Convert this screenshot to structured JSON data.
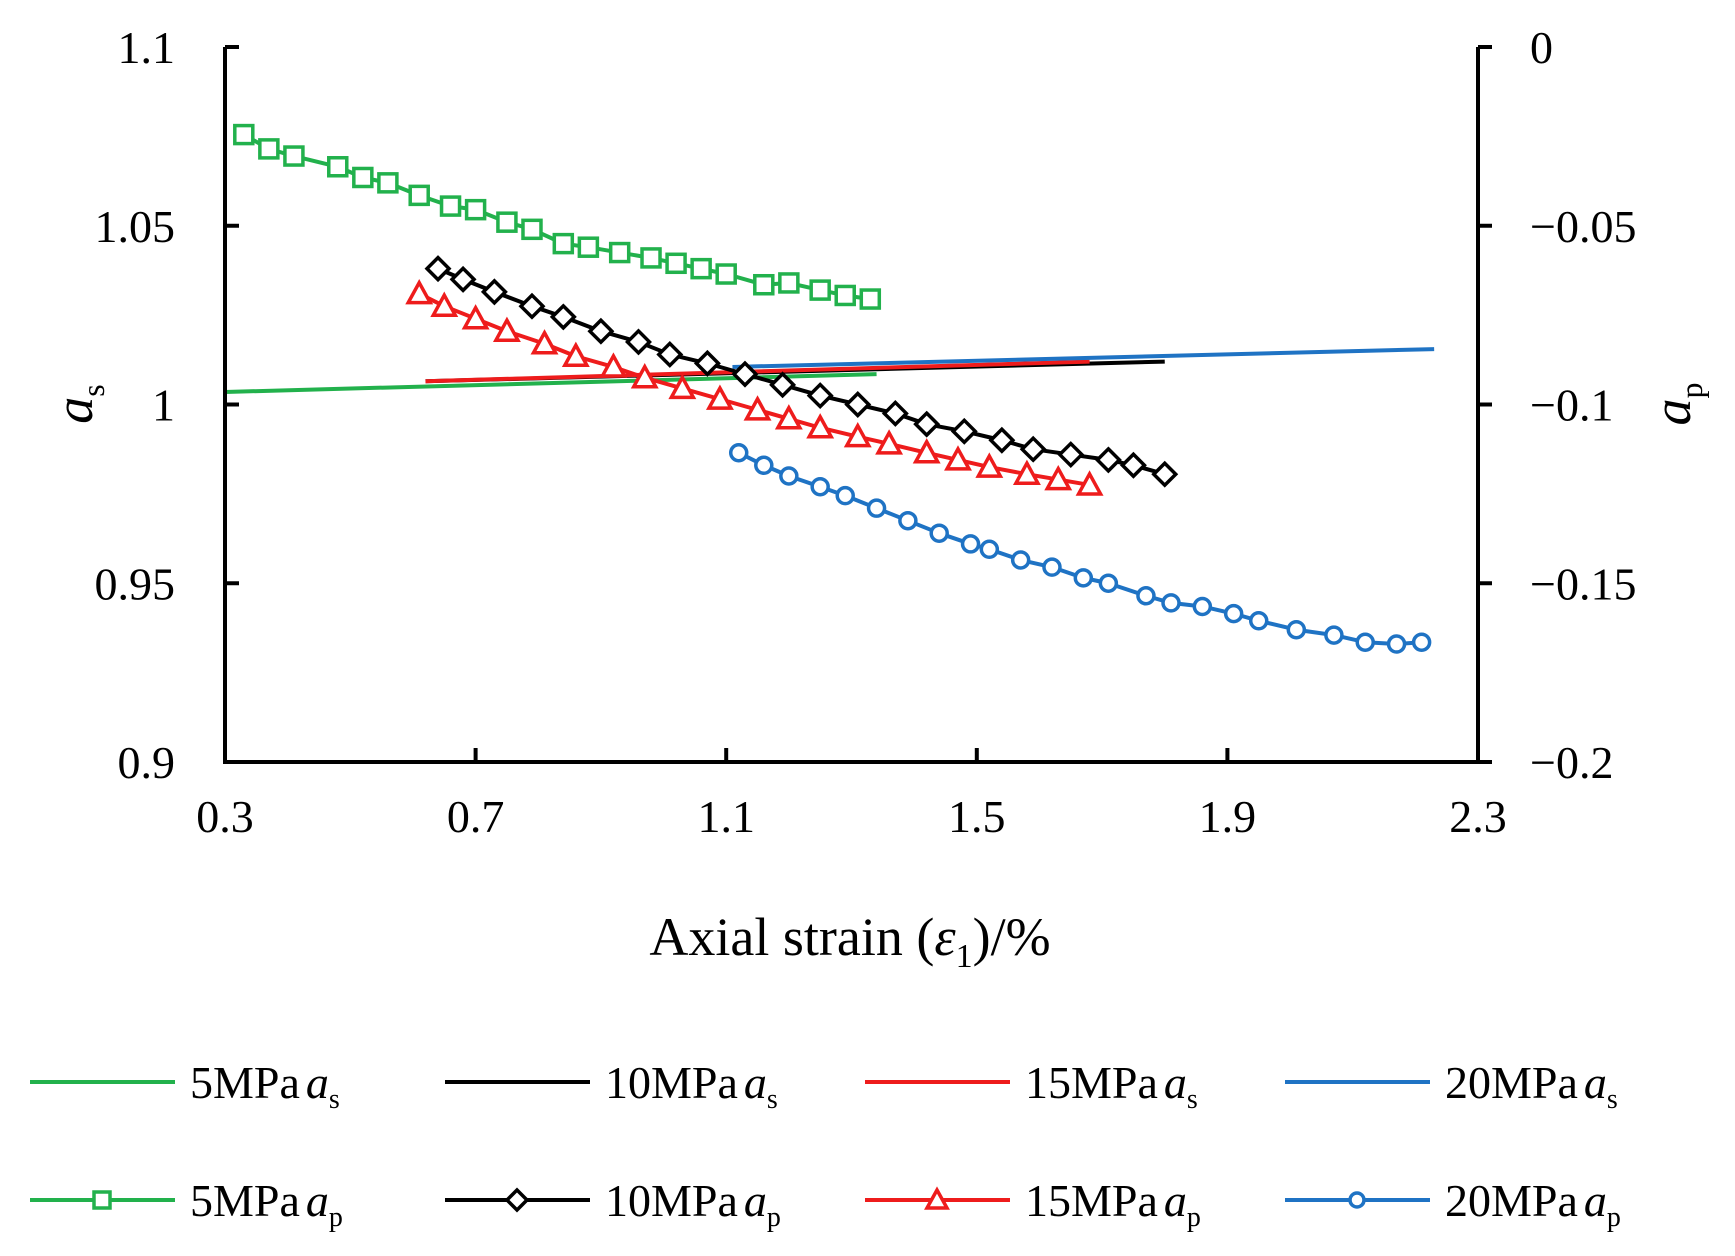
{
  "chart_data": {
    "type": "line",
    "xlabel": "Axial strain (ε1)/%",
    "xlabel_parts": {
      "prefix": "Axial strain (",
      "symbol": "ε",
      "sub": "1",
      "suffix": ")/%"
    },
    "ylabel_left": {
      "symbol": "a",
      "sub": "s"
    },
    "ylabel_right": {
      "symbol": "a",
      "sub": "p"
    },
    "xlim": [
      0.3,
      2.3
    ],
    "ylim_left": [
      0.9,
      1.1
    ],
    "ylim_right": [
      -0.2,
      0
    ],
    "x_ticks": [
      "0.3",
      "0.7",
      "1.1",
      "1.5",
      "1.9",
      "2.3"
    ],
    "y_ticks_left": [
      "0.9",
      "0.95",
      "1",
      "1.05",
      "1.1"
    ],
    "y_ticks_right": [
      "−0.2",
      "−0.15",
      "−0.1",
      "−0.05",
      "0"
    ],
    "grid": false,
    "legend_position": "bottom",
    "series": [
      {
        "name": "5MPa as",
        "label_prefix": "5MPa",
        "sym": "a",
        "sub": "s",
        "kind": "line",
        "axis": "left",
        "color": "#22b14c",
        "x": [
          0.3,
          1.34
        ],
        "y": [
          1.0035,
          1.0085
        ]
      },
      {
        "name": "10MPa as",
        "label_prefix": "10MPa",
        "sym": "a",
        "sub": "s",
        "kind": "line",
        "axis": "left",
        "color": "#000000",
        "x": [
          0.62,
          1.8
        ],
        "y": [
          1.0065,
          1.012
        ]
      },
      {
        "name": "15MPa as",
        "label_prefix": "15MPa",
        "sym": "a",
        "sub": "s",
        "kind": "line",
        "axis": "left",
        "color": "#ee1c1c",
        "x": [
          0.62,
          1.68
        ],
        "y": [
          1.0065,
          1.012
        ]
      },
      {
        "name": "20MPa as",
        "label_prefix": "20MPa",
        "sym": "a",
        "sub": "s",
        "kind": "line",
        "axis": "left",
        "color": "#1f73c4",
        "x": [
          1.11,
          2.23
        ],
        "y": [
          1.0105,
          1.0155
        ]
      },
      {
        "name": "5MPa ap",
        "label_prefix": "5MPa",
        "sym": "a",
        "sub": "p",
        "kind": "marker",
        "marker": "square",
        "axis": "right",
        "color": "#22b14c",
        "x": [
          0.33,
          0.37,
          0.41,
          0.48,
          0.52,
          0.56,
          0.61,
          0.66,
          0.7,
          0.75,
          0.79,
          0.84,
          0.88,
          0.93,
          0.98,
          1.02,
          1.06,
          1.1,
          1.16,
          1.2,
          1.25,
          1.29,
          1.33
        ],
        "y": [
          -0.0245,
          -0.0285,
          -0.0305,
          -0.0335,
          -0.0365,
          -0.038,
          -0.0415,
          -0.0445,
          -0.0455,
          -0.049,
          -0.051,
          -0.055,
          -0.056,
          -0.0575,
          -0.059,
          -0.0605,
          -0.062,
          -0.0635,
          -0.0665,
          -0.066,
          -0.068,
          -0.0695,
          -0.0705
        ]
      },
      {
        "name": "10MPa ap",
        "label_prefix": "10MPa",
        "sym": "a",
        "sub": "p",
        "kind": "marker",
        "marker": "diamond",
        "axis": "right",
        "color": "#000000",
        "x": [
          0.64,
          0.68,
          0.73,
          0.79,
          0.84,
          0.9,
          0.96,
          1.01,
          1.07,
          1.13,
          1.19,
          1.25,
          1.31,
          1.37,
          1.42,
          1.48,
          1.54,
          1.59,
          1.65,
          1.71,
          1.75,
          1.8
        ],
        "y": [
          -0.062,
          -0.065,
          -0.0685,
          -0.0725,
          -0.0755,
          -0.0795,
          -0.0825,
          -0.086,
          -0.0885,
          -0.0915,
          -0.0945,
          -0.0975,
          -0.1,
          -0.1025,
          -0.1055,
          -0.1075,
          -0.11,
          -0.1125,
          -0.114,
          -0.1155,
          -0.117,
          -0.1195
        ]
      },
      {
        "name": "15MPa ap",
        "label_prefix": "15MPa",
        "sym": "a",
        "sub": "p",
        "kind": "marker",
        "marker": "triangle",
        "axis": "right",
        "color": "#ee1c1c",
        "x": [
          0.61,
          0.65,
          0.7,
          0.75,
          0.81,
          0.86,
          0.92,
          0.97,
          1.03,
          1.09,
          1.15,
          1.2,
          1.25,
          1.31,
          1.36,
          1.42,
          1.47,
          1.52,
          1.58,
          1.63,
          1.68
        ],
        "y": [
          -0.069,
          -0.0725,
          -0.076,
          -0.0795,
          -0.083,
          -0.0865,
          -0.0895,
          -0.0925,
          -0.0955,
          -0.0985,
          -0.1015,
          -0.104,
          -0.1065,
          -0.109,
          -0.111,
          -0.1135,
          -0.1155,
          -0.1175,
          -0.1195,
          -0.121,
          -0.1225
        ]
      },
      {
        "name": "20MPa ap",
        "label_prefix": "20MPa",
        "sym": "a",
        "sub": "p",
        "kind": "marker",
        "marker": "circle",
        "axis": "right",
        "color": "#1f73c4",
        "x": [
          1.12,
          1.16,
          1.2,
          1.25,
          1.29,
          1.34,
          1.39,
          1.44,
          1.49,
          1.52,
          1.57,
          1.62,
          1.67,
          1.71,
          1.77,
          1.81,
          1.86,
          1.91,
          1.95,
          2.01,
          2.07,
          2.12,
          2.17,
          2.21
        ],
        "y": [
          -0.1135,
          -0.117,
          -0.12,
          -0.123,
          -0.1255,
          -0.129,
          -0.1325,
          -0.136,
          -0.139,
          -0.1405,
          -0.1435,
          -0.1455,
          -0.1485,
          -0.15,
          -0.1535,
          -0.1555,
          -0.1565,
          -0.1585,
          -0.1605,
          -0.163,
          -0.1645,
          -0.1665,
          -0.167,
          -0.1665
        ]
      }
    ]
  }
}
